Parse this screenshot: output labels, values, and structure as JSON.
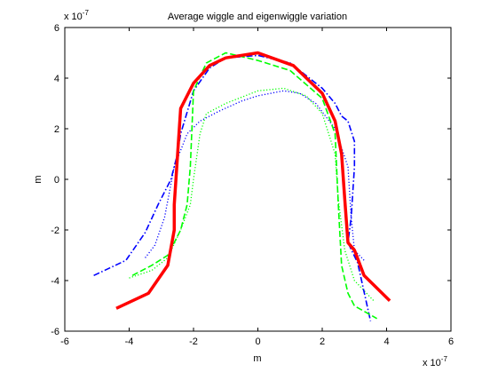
{
  "chart_data": {
    "type": "line",
    "title": "Average wiggle and eigenwiggle variation",
    "xlabel": "m",
    "ylabel": "m",
    "x_exponent": "x 10",
    "x_exponent_power": "-7",
    "y_exponent": "x 10",
    "y_exponent_power": "-7",
    "xlim": [
      -6,
      6
    ],
    "ylim": [
      -6,
      6
    ],
    "xticks": [
      -6,
      -4,
      -2,
      0,
      2,
      4,
      6
    ],
    "yticks": [
      -6,
      -4,
      -2,
      0,
      2,
      4,
      6
    ],
    "xtick_labels": [
      "-6",
      "-4",
      "-2",
      "0",
      "2",
      "4",
      "6"
    ],
    "ytick_labels": [
      "-6",
      "-4",
      "-2",
      "0",
      "2",
      "4",
      "6"
    ],
    "grid": false,
    "series": [
      {
        "color": "#ff0000",
        "style": "solid",
        "x": [
          -4.4,
          -3.4,
          -2.8,
          -2.6,
          -2.6,
          -2.4,
          -2.0,
          -1.5,
          -1.0,
          0.0,
          1.1,
          2.0,
          2.4,
          2.6,
          2.7,
          2.8,
          3.0,
          3.3,
          4.1
        ],
        "y": [
          -5.1,
          -4.5,
          -3.4,
          -2.0,
          -1.0,
          2.8,
          3.8,
          4.5,
          4.8,
          5.0,
          4.5,
          3.4,
          2.3,
          1.0,
          -0.8,
          -2.5,
          -2.8,
          -3.8,
          -4.8
        ]
      },
      {
        "color": "#0000ff",
        "style": "dashdot",
        "x": [
          -5.1,
          -4.1,
          -3.5,
          -3.1,
          -2.7,
          -2.5,
          -2.4,
          -2.0,
          -1.5,
          -1.0,
          0.0,
          1.0,
          2.0,
          2.4,
          2.6,
          2.8,
          3.0,
          3.0,
          2.9,
          2.8,
          3.1,
          3.5
        ],
        "y": [
          -3.8,
          -3.2,
          -2.1,
          -1.0,
          0.0,
          1.0,
          1.8,
          3.5,
          4.4,
          4.8,
          4.9,
          4.6,
          3.6,
          3.0,
          2.5,
          2.3,
          1.5,
          0.5,
          -1.5,
          -2.5,
          -3.3,
          -5.6
        ]
      },
      {
        "color": "#0000ff",
        "style": "dotted",
        "x": [
          -3.5,
          -3.2,
          -2.9,
          -2.6,
          -2.2,
          -1.8,
          -1.2,
          -0.5,
          0.0,
          0.8,
          1.3,
          1.8,
          2.4,
          2.8,
          2.9,
          3.0,
          3.3
        ],
        "y": [
          -3.1,
          -2.6,
          -1.5,
          0.5,
          1.8,
          2.3,
          2.7,
          3.1,
          3.3,
          3.5,
          3.4,
          3.0,
          2.0,
          0.5,
          -1.5,
          -2.8,
          -3.2
        ]
      },
      {
        "color": "#00ff00",
        "style": "dashed",
        "x": [
          -3.9,
          -3.3,
          -2.8,
          -2.4,
          -2.2,
          -2.1,
          -2.0,
          -1.6,
          -1.0,
          0.0,
          1.0,
          2.0,
          2.4,
          2.5,
          2.6,
          2.8,
          3.0,
          3.7
        ],
        "y": [
          -3.8,
          -3.4,
          -3.0,
          -2.0,
          -1.0,
          0.5,
          3.5,
          4.6,
          5.0,
          4.7,
          4.3,
          3.2,
          1.8,
          -1.0,
          -3.4,
          -4.5,
          -5.0,
          -5.5
        ]
      },
      {
        "color": "#00ff00",
        "style": "dotted",
        "x": [
          -4.0,
          -3.3,
          -2.8,
          -2.4,
          -2.1,
          -2.0,
          -1.8,
          -1.6,
          -1.0,
          0.0,
          0.8,
          1.5,
          2.0,
          2.4,
          2.5,
          2.7,
          3.0,
          3.6
        ],
        "y": [
          -3.9,
          -3.6,
          -3.1,
          -2.0,
          -1.0,
          0.0,
          1.8,
          2.6,
          3.0,
          3.5,
          3.6,
          3.3,
          2.6,
          1.0,
          -0.8,
          -2.8,
          -4.0,
          -4.8
        ]
      }
    ]
  }
}
